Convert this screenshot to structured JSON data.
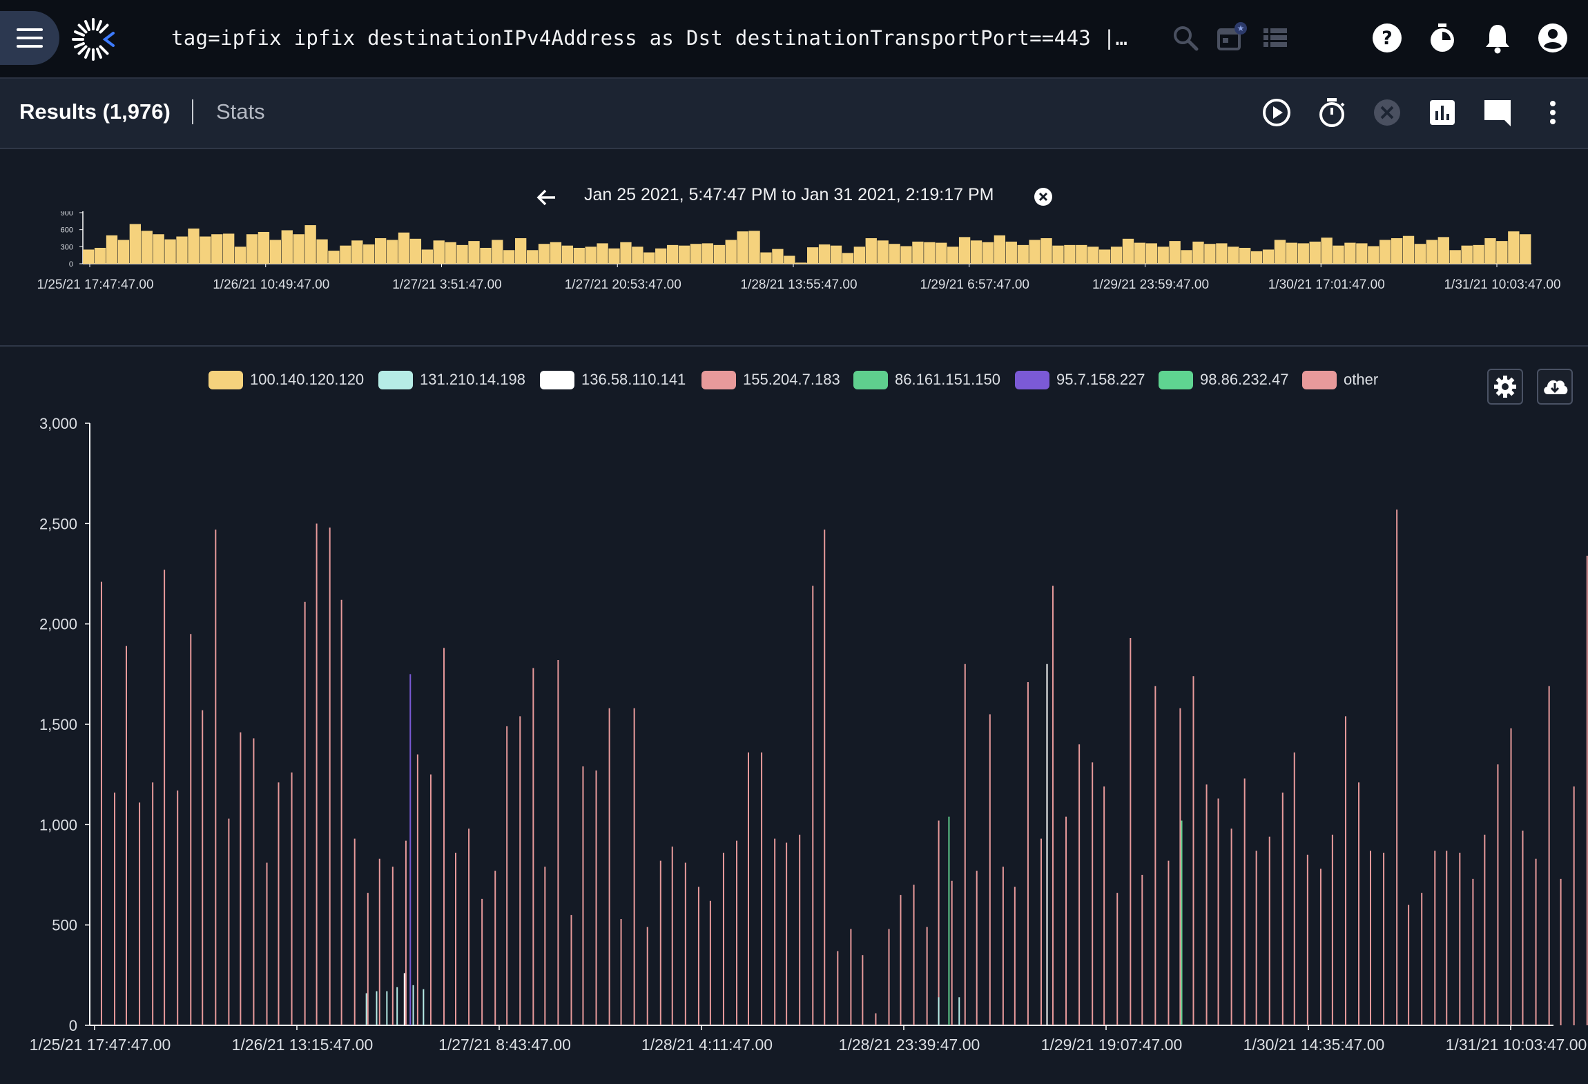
{
  "topbar": {
    "query": "tag=ipfix ipfix destinationIPv4Address as Dst destinationTransportPort==443 | cou…",
    "icons": [
      "menu-icon",
      "logo-icon",
      "search-icon",
      "calendar-icon",
      "list-icon",
      "help-icon",
      "timer-icon",
      "bell-icon",
      "account-icon"
    ]
  },
  "results_bar": {
    "results_label": "Results (1,976)",
    "stats_label": "Stats",
    "icons": [
      "play-icon",
      "stopwatch-icon",
      "cancel-icon",
      "chart-icon",
      "comment-icon",
      "more-vert-icon"
    ]
  },
  "overview": {
    "range_text": "Jan 25 2021, 5:47:47 PM to Jan 31 2021, 2:19:17 PM",
    "y_ticks": [
      "900",
      "600",
      "300",
      "0"
    ],
    "x_ticks": [
      "1/25/21 17:47:47.00",
      "1/26/21 10:49:47.00",
      "1/27/21 3:51:47.00",
      "1/27/21 20:53:47.00",
      "1/28/21 13:55:47.00",
      "1/29/21 6:57:47.00",
      "1/29/21 23:59:47.00",
      "1/30/21 17:01:47.00",
      "1/31/21 10:03:47.00"
    ],
    "bar_color": "#f5d27d",
    "values": [
      250,
      280,
      500,
      420,
      700,
      580,
      520,
      430,
      480,
      620,
      480,
      520,
      530,
      300,
      520,
      560,
      420,
      590,
      520,
      680,
      430,
      230,
      320,
      410,
      340,
      450,
      420,
      550,
      440,
      250,
      410,
      380,
      330,
      400,
      280,
      420,
      240,
      450,
      240,
      350,
      380,
      320,
      280,
      300,
      360,
      270,
      380,
      300,
      200,
      270,
      330,
      320,
      350,
      360,
      330,
      420,
      570,
      580,
      200,
      260,
      140,
      20,
      290,
      340,
      320,
      190,
      300,
      450,
      410,
      350,
      310,
      390,
      380,
      370,
      300,
      470,
      410,
      380,
      500,
      390,
      330,
      420,
      450,
      320,
      330,
      330,
      300,
      250,
      300,
      440,
      370,
      360,
      300,
      400,
      240,
      390,
      350,
      360,
      300,
      280,
      220,
      250,
      420,
      370,
      360,
      390,
      460,
      320,
      370,
      360,
      310,
      420,
      450,
      490,
      350,
      420,
      470,
      240,
      320,
      330,
      450,
      400,
      570,
      520
    ]
  },
  "legend": [
    {
      "label": "100.140.120.120",
      "color": "#f5d27d"
    },
    {
      "label": "131.210.14.198",
      "color": "#b6ece6"
    },
    {
      "label": "136.58.110.141",
      "color": "#ffffff"
    },
    {
      "label": "155.204.7.183",
      "color": "#e89a9b"
    },
    {
      "label": "86.161.151.150",
      "color": "#5fcf8e"
    },
    {
      "label": "95.7.158.227",
      "color": "#7b5ad6"
    },
    {
      "label": "98.86.232.47",
      "color": "#5fd491"
    },
    {
      "label": "other",
      "color": "#e89a9b"
    }
  ],
  "chart_buttons": [
    "settings-icon",
    "cloud-download-icon"
  ],
  "chart_data": {
    "type": "bar",
    "ylim": [
      0,
      3000
    ],
    "y_ticks": [
      "3,000",
      "2,500",
      "2,000",
      "1,500",
      "1,000",
      "500",
      "0"
    ],
    "x_ticks": [
      "1/25/21 17:47:47.00",
      "1/26/21 13:15:47.00",
      "1/27/21 8:43:47.00",
      "1/28/21 4:11:47.00",
      "1/28/21 23:39:47.00",
      "1/29/21 19:07:47.00",
      "1/30/21 14:35:47.00",
      "1/31/21 10:03:47.00"
    ],
    "grid": false,
    "x_domain": [
      0,
      1000
    ],
    "series": [
      {
        "name": "155.204.7.183",
        "color": "#e89a9b",
        "points": [
          [
            8,
            2210
          ],
          [
            17,
            1160
          ],
          [
            25,
            1890
          ],
          [
            34,
            1110
          ],
          [
            43,
            1210
          ],
          [
            51,
            2270
          ],
          [
            60,
            1170
          ],
          [
            69,
            1950
          ],
          [
            77,
            1570
          ],
          [
            86,
            2470
          ],
          [
            95,
            1030
          ],
          [
            103,
            1460
          ],
          [
            112,
            1430
          ],
          [
            121,
            810
          ],
          [
            129,
            1210
          ],
          [
            138,
            1260
          ],
          [
            147,
            2110
          ],
          [
            155,
            2500
          ],
          [
            164,
            2480
          ],
          [
            172,
            2120
          ],
          [
            181,
            930
          ],
          [
            190,
            660
          ],
          [
            198,
            830
          ],
          [
            207,
            790
          ],
          [
            216,
            920
          ],
          [
            224,
            1350
          ],
          [
            233,
            1250
          ],
          [
            242,
            1880
          ],
          [
            250,
            860
          ],
          [
            259,
            980
          ],
          [
            268,
            630
          ],
          [
            277,
            770
          ],
          [
            285,
            1490
          ],
          [
            294,
            1540
          ],
          [
            303,
            1780
          ],
          [
            311,
            790
          ],
          [
            320,
            1820
          ],
          [
            329,
            550
          ],
          [
            337,
            1290
          ],
          [
            346,
            1270
          ],
          [
            355,
            1580
          ],
          [
            363,
            530
          ],
          [
            372,
            1580
          ],
          [
            381,
            490
          ],
          [
            390,
            820
          ],
          [
            398,
            890
          ],
          [
            407,
            810
          ],
          [
            416,
            690
          ],
          [
            424,
            620
          ],
          [
            433,
            860
          ],
          [
            442,
            920
          ],
          [
            450,
            1360
          ],
          [
            459,
            1360
          ],
          [
            468,
            930
          ],
          [
            476,
            910
          ],
          [
            485,
            950
          ],
          [
            494,
            2190
          ],
          [
            502,
            2470
          ],
          [
            511,
            370
          ],
          [
            520,
            480
          ],
          [
            528,
            350
          ],
          [
            537,
            60
          ],
          [
            546,
            480
          ],
          [
            554,
            650
          ],
          [
            563,
            700
          ],
          [
            572,
            490
          ],
          [
            580,
            1020
          ],
          [
            589,
            720
          ],
          [
            598,
            1800
          ],
          [
            606,
            770
          ],
          [
            615,
            1550
          ],
          [
            624,
            790
          ],
          [
            632,
            690
          ],
          [
            641,
            1710
          ],
          [
            650,
            930
          ],
          [
            658,
            2190
          ],
          [
            667,
            1040
          ],
          [
            676,
            1400
          ],
          [
            685,
            1310
          ],
          [
            693,
            1190
          ],
          [
            702,
            660
          ],
          [
            711,
            1930
          ],
          [
            719,
            750
          ],
          [
            728,
            1690
          ],
          [
            737,
            820
          ],
          [
            745,
            1580
          ],
          [
            754,
            1740
          ],
          [
            763,
            1200
          ],
          [
            771,
            1130
          ],
          [
            780,
            980
          ],
          [
            789,
            1230
          ],
          [
            797,
            870
          ],
          [
            806,
            940
          ],
          [
            815,
            1160
          ],
          [
            823,
            1360
          ],
          [
            832,
            850
          ],
          [
            841,
            780
          ],
          [
            849,
            950
          ],
          [
            858,
            1540
          ],
          [
            867,
            1210
          ],
          [
            875,
            870
          ],
          [
            884,
            860
          ],
          [
            893,
            2570
          ],
          [
            901,
            600
          ],
          [
            910,
            660
          ],
          [
            919,
            870
          ],
          [
            927,
            870
          ],
          [
            936,
            860
          ],
          [
            945,
            730
          ],
          [
            953,
            950
          ],
          [
            962,
            1300
          ],
          [
            971,
            1480
          ],
          [
            979,
            970
          ],
          [
            988,
            830
          ],
          [
            997,
            1690
          ],
          [
            1005,
            730
          ],
          [
            1014,
            1190
          ],
          [
            1023,
            2340
          ]
        ]
      },
      {
        "name": "95.7.158.227",
        "color": "#7b5ad6",
        "points": [
          [
            219,
            1750
          ]
        ]
      },
      {
        "name": "136.58.110.141",
        "color": "#ffffff",
        "points": [
          [
            215,
            260
          ],
          [
            654,
            1800
          ]
        ]
      },
      {
        "name": "131.210.14.198",
        "color": "#b6ece6",
        "points": [
          [
            189,
            160
          ],
          [
            196,
            170
          ],
          [
            203,
            170
          ],
          [
            210,
            190
          ],
          [
            221,
            200
          ],
          [
            228,
            180
          ],
          [
            580,
            140
          ],
          [
            594,
            140
          ]
        ]
      },
      {
        "name": "86.161.151.150",
        "color": "#5fcf8e",
        "points": [
          [
            587,
            1040
          ]
        ]
      },
      {
        "name": "98.86.232.47",
        "color": "#5fd491",
        "points": [
          [
            746,
            1020
          ]
        ]
      }
    ]
  }
}
